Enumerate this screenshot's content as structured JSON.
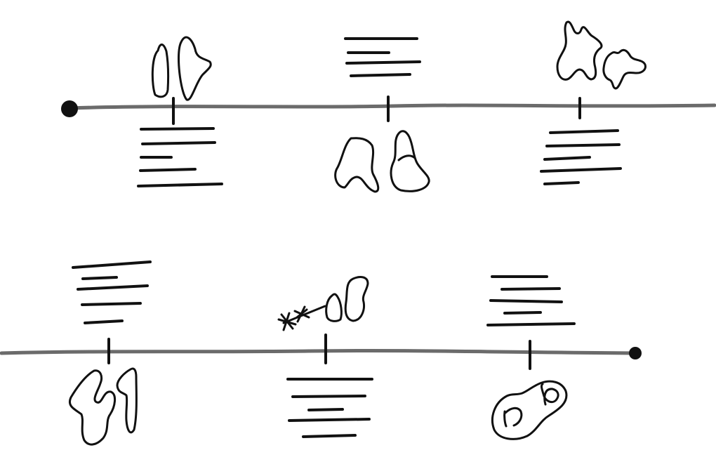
{
  "diagram": {
    "type": "hand-drawn timeline",
    "ink_color": "#111111",
    "line_color": "#6b6b6b",
    "background": "#ffffff",
    "rows": [
      {
        "id": "timeline-top",
        "milestones": [
          {
            "id": "t1",
            "above": "doodle",
            "below": "text"
          },
          {
            "id": "t2",
            "above": "text",
            "below": "doodle"
          },
          {
            "id": "t3",
            "above": "doodle",
            "below": "text"
          }
        ]
      },
      {
        "id": "timeline-bottom",
        "milestones": [
          {
            "id": "b1",
            "above": "text",
            "below": "doodle"
          },
          {
            "id": "b2",
            "above": "doodle",
            "below": "text"
          },
          {
            "id": "b3",
            "above": "text",
            "below": "doodle"
          }
        ]
      }
    ]
  }
}
